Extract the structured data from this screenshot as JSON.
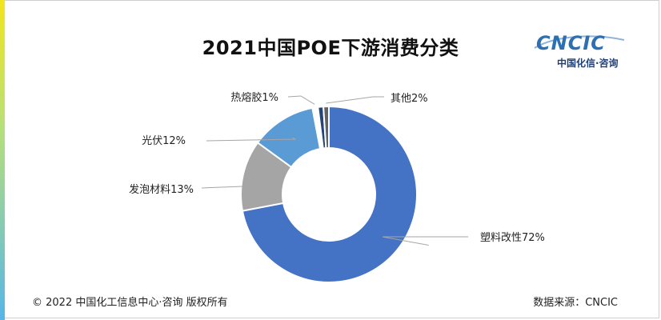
{
  "chart_data": {
    "type": "pie",
    "donut": true,
    "title": "2021中国POE下游消费分类",
    "slices": [
      {
        "name": "塑料改性",
        "value": 72,
        "label": "塑料改性72%",
        "color": "#4472c4"
      },
      {
        "name": "发泡材料",
        "value": 13,
        "label": "发泡材料13%",
        "color": "#a5a5a5"
      },
      {
        "name": "光伏",
        "value": 12,
        "label": "光伏12%",
        "color": "#5b9bd5"
      },
      {
        "name": "热熔胶",
        "value": 1,
        "label": "热熔胶1%",
        "color": "#ffffff"
      },
      {
        "name": "其他-1",
        "value": 1,
        "label": "",
        "color": "#264478"
      },
      {
        "name": "其他-2",
        "value": 1,
        "label": "其他2%",
        "color": "#636363"
      }
    ]
  },
  "logo": {
    "main": "CNCIC",
    "sub": "中国化信·咨询"
  },
  "footer": {
    "copyright": "© 2022 中国化工信息中心·咨询 版权所有",
    "source": "数据来源：CNCIC"
  }
}
